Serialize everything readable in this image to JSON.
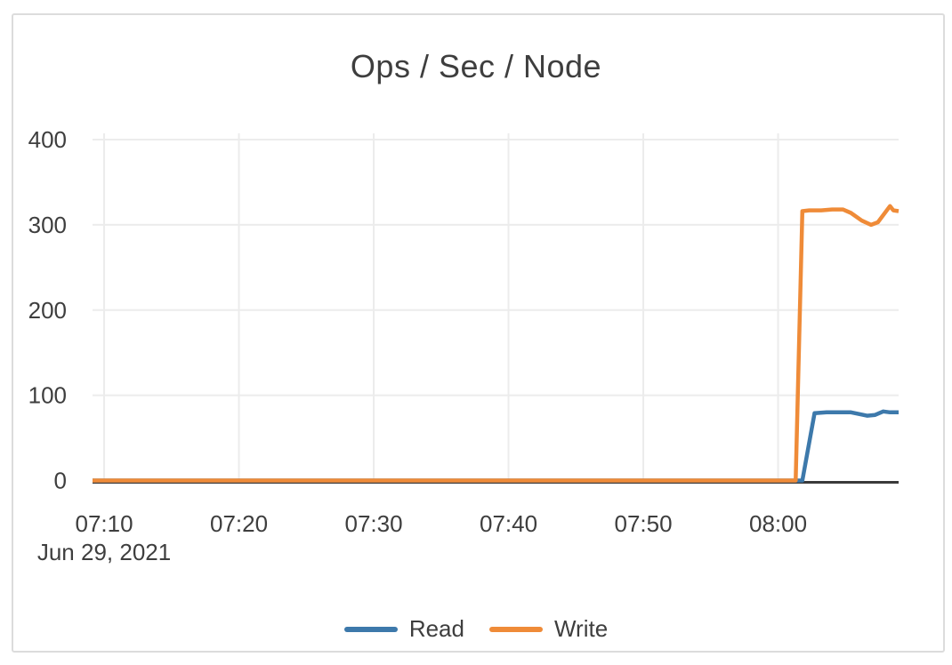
{
  "chart_data": {
    "type": "line",
    "title": "Ops / Sec / Node",
    "x_axis": {
      "unit": "time (HH:MM), minutes after 07:00",
      "date_label": "Jun 29, 2021",
      "ticks": [
        {
          "label": "07:10",
          "t": 10
        },
        {
          "label": "07:20",
          "t": 20
        },
        {
          "label": "07:30",
          "t": 30
        },
        {
          "label": "07:40",
          "t": 40
        },
        {
          "label": "07:50",
          "t": 50
        },
        {
          "label": "08:00",
          "t": 60
        }
      ],
      "xlim": [
        9.14,
        68.94
      ]
    },
    "y_axis": {
      "ticks": [
        0,
        100,
        200,
        300,
        400
      ],
      "ylim": [
        0,
        400
      ]
    },
    "grid": true,
    "legend_position": "bottom-center",
    "colors": {
      "text": "#3e3e3e",
      "grid": "#ececec",
      "axis": "#3a3a3a",
      "read": "#3d79ab",
      "write": "#ef8b38"
    },
    "series": [
      {
        "name": "Read",
        "color": "#3d79ab",
        "points": [
          [
            9.14,
            0
          ],
          [
            15,
            0
          ],
          [
            20,
            0
          ],
          [
            25,
            0
          ],
          [
            30,
            0
          ],
          [
            35,
            0
          ],
          [
            40,
            0
          ],
          [
            45,
            0
          ],
          [
            50,
            0
          ],
          [
            55,
            0
          ],
          [
            60,
            0
          ],
          [
            61.8,
            0
          ],
          [
            62.7,
            79
          ],
          [
            63.6,
            80
          ],
          [
            64.5,
            80
          ],
          [
            65.4,
            80
          ],
          [
            66.0,
            78
          ],
          [
            66.6,
            76
          ],
          [
            67.2,
            77
          ],
          [
            67.8,
            81
          ],
          [
            68.3,
            80
          ],
          [
            68.94,
            80
          ]
        ]
      },
      {
        "name": "Write",
        "color": "#ef8b38",
        "points": [
          [
            9.14,
            0
          ],
          [
            15,
            0
          ],
          [
            20,
            0
          ],
          [
            25,
            0
          ],
          [
            30,
            0
          ],
          [
            35,
            0
          ],
          [
            40,
            0
          ],
          [
            45,
            0
          ],
          [
            50,
            0
          ],
          [
            55,
            0
          ],
          [
            60,
            0
          ],
          [
            61.3,
            0
          ],
          [
            61.8,
            316
          ],
          [
            62.3,
            317
          ],
          [
            63.2,
            317
          ],
          [
            64.0,
            318
          ],
          [
            64.8,
            318
          ],
          [
            65.4,
            314
          ],
          [
            66.2,
            305
          ],
          [
            66.9,
            300
          ],
          [
            67.4,
            303
          ],
          [
            68.3,
            322
          ],
          [
            68.55,
            317
          ],
          [
            68.94,
            316
          ]
        ]
      }
    ]
  }
}
